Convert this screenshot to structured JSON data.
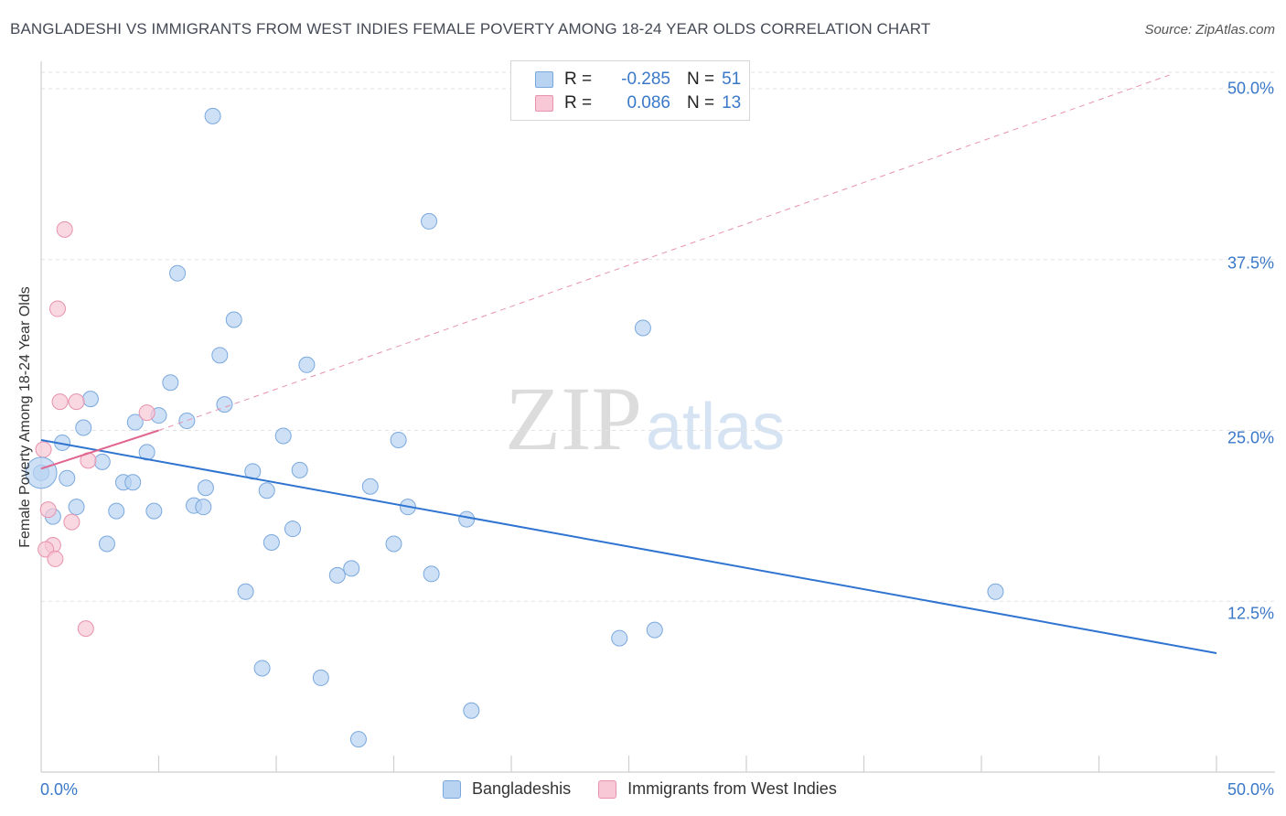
{
  "header": {
    "title": "BANGLADESHI VS IMMIGRANTS FROM WEST INDIES FEMALE POVERTY AMONG 18-24 YEAR OLDS CORRELATION CHART",
    "source": "Source: ZipAtlas.com"
  },
  "watermark": {
    "zip": "ZIP",
    "atlas": "atlas"
  },
  "legend": {
    "rows": [
      {
        "r_label": "R =",
        "r_value": "-0.285",
        "n_label": "N =",
        "n_value": "51",
        "color": "#b8d3f2",
        "border": "#7aa8dd"
      },
      {
        "r_label": "R =",
        "r_value": "0.086",
        "n_label": "N =",
        "n_value": "13",
        "color": "#f8c8d6",
        "border": "#e892ad"
      }
    ]
  },
  "bottom_legend": {
    "items": [
      {
        "label": "Bangladeshis",
        "color": "#b8d3f2",
        "border": "#7aa8dd"
      },
      {
        "label": "Immigrants from West Indies",
        "color": "#f8c8d6",
        "border": "#e892ad"
      }
    ]
  },
  "chart_data": {
    "type": "scatter",
    "title": "BANGLADESHI VS IMMIGRANTS FROM WEST INDIES FEMALE POVERTY AMONG 18-24 YEAR OLDS CORRELATION CHART",
    "xlabel": "",
    "ylabel": "Female Poverty Among 18-24 Year Olds",
    "xlim": [
      0,
      50
    ],
    "ylim": [
      0,
      50
    ],
    "x_tick_labels": [
      "0.0%",
      "50.0%"
    ],
    "y_ticks": [
      12.5,
      25.0,
      37.5,
      50.0
    ],
    "y_tick_labels": [
      "12.5%",
      "25.0%",
      "37.5%",
      "50.0%"
    ],
    "grid": true,
    "series": [
      {
        "name": "Bangladeshis",
        "color": "#7aa8dd",
        "fill": "#b8d3f2",
        "points": [
          [
            7.3,
            48.0
          ],
          [
            16.5,
            40.3
          ],
          [
            5.8,
            36.5
          ],
          [
            8.2,
            33.1
          ],
          [
            25.6,
            32.5
          ],
          [
            7.6,
            30.5
          ],
          [
            11.3,
            29.8
          ],
          [
            5.5,
            28.5
          ],
          [
            2.1,
            27.3
          ],
          [
            7.8,
            26.9
          ],
          [
            5.0,
            26.1
          ],
          [
            4.0,
            25.6
          ],
          [
            6.2,
            25.7
          ],
          [
            1.8,
            25.2
          ],
          [
            10.3,
            24.6
          ],
          [
            15.2,
            24.3
          ],
          [
            0.9,
            24.1
          ],
          [
            4.5,
            23.4
          ],
          [
            2.6,
            22.7
          ],
          [
            0.0,
            21.9
          ],
          [
            9.0,
            22.0
          ],
          [
            11.0,
            22.1
          ],
          [
            1.1,
            21.5
          ],
          [
            3.5,
            21.2
          ],
          [
            3.9,
            21.2
          ],
          [
            14.0,
            20.9
          ],
          [
            7.0,
            20.8
          ],
          [
            9.6,
            20.6
          ],
          [
            6.5,
            19.5
          ],
          [
            6.9,
            19.4
          ],
          [
            15.6,
            19.4
          ],
          [
            1.5,
            19.4
          ],
          [
            3.2,
            19.1
          ],
          [
            4.8,
            19.1
          ],
          [
            0.5,
            18.7
          ],
          [
            18.1,
            18.5
          ],
          [
            10.7,
            17.8
          ],
          [
            9.8,
            16.8
          ],
          [
            15.0,
            16.7
          ],
          [
            2.8,
            16.7
          ],
          [
            13.2,
            14.9
          ],
          [
            12.6,
            14.4
          ],
          [
            16.6,
            14.5
          ],
          [
            8.7,
            13.2
          ],
          [
            40.6,
            13.2
          ],
          [
            26.1,
            10.4
          ],
          [
            24.6,
            9.8
          ],
          [
            9.4,
            7.6
          ],
          [
            11.9,
            6.9
          ],
          [
            18.3,
            4.5
          ],
          [
            13.5,
            2.4
          ]
        ]
      },
      {
        "name": "Immigrants from West Indies",
        "color": "#e892ad",
        "fill": "#f8c8d6",
        "points": [
          [
            1.0,
            39.7
          ],
          [
            0.7,
            33.9
          ],
          [
            0.8,
            27.1
          ],
          [
            1.5,
            27.1
          ],
          [
            4.5,
            26.3
          ],
          [
            0.1,
            23.6
          ],
          [
            2.0,
            22.8
          ],
          [
            0.3,
            19.2
          ],
          [
            1.3,
            18.3
          ],
          [
            0.5,
            16.6
          ],
          [
            0.2,
            16.3
          ],
          [
            0.6,
            15.6
          ],
          [
            1.9,
            10.5
          ]
        ]
      }
    ],
    "trend_lines": [
      {
        "series": "Bangladeshis",
        "style": "solid",
        "from": [
          0.0,
          24.3
        ],
        "to": [
          50.0,
          8.7
        ],
        "color": "#2f74d0"
      },
      {
        "series": "Immigrants from West Indies",
        "style": "solid",
        "from": [
          0.0,
          22.2
        ],
        "to": [
          5.0,
          25.0
        ],
        "color": "#e0668f"
      },
      {
        "series": "Immigrants from West Indies",
        "style": "dashed",
        "from": [
          5.0,
          25.0
        ],
        "to": [
          48.0,
          51.0
        ],
        "color": "#e892ad"
      }
    ]
  }
}
